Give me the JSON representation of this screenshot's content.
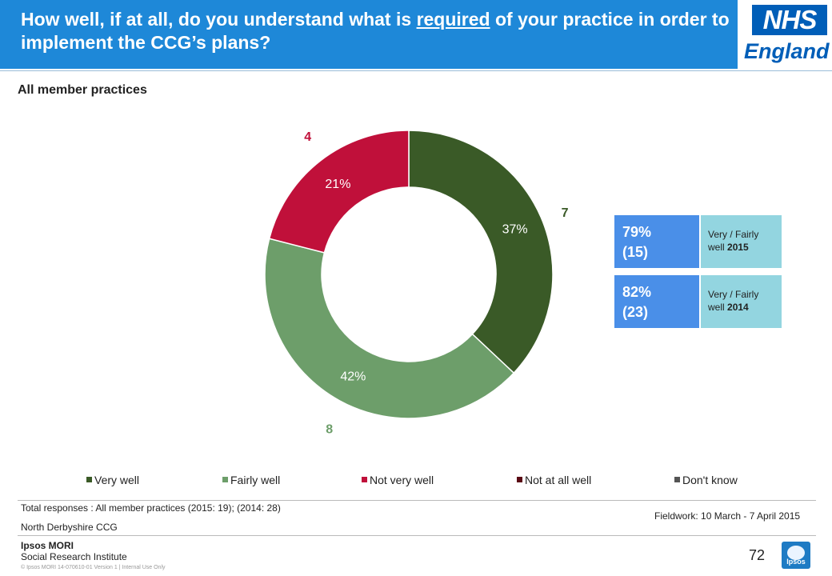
{
  "header": {
    "title_before": "How well, if at all, do you understand what is ",
    "title_underlined": "required",
    "title_after": " of your practice in order to implement the CCG’s plans?",
    "logo_nhs": "NHS",
    "logo_england": "England"
  },
  "subtitle": "All member practices",
  "chart_data": {
    "type": "pie",
    "style": "donut",
    "slices": [
      {
        "name": "Very well",
        "value": 37,
        "label": "37%",
        "count": "7",
        "color": "#3a5a27"
      },
      {
        "name": "Fairly well",
        "value": 42,
        "label": "42%",
        "count": "8",
        "color": "#6d9e6a"
      },
      {
        "name": "Not very well",
        "value": 21,
        "label": "21%",
        "count": "4",
        "color": "#c0103a"
      }
    ],
    "legend": [
      {
        "name": "Very well",
        "color": "#3a5a27"
      },
      {
        "name": "Fairly well",
        "color": "#6d9e6a"
      },
      {
        "name": "Not very well",
        "color": "#c0103a"
      },
      {
        "name": "Not at all well",
        "color": "#5a0a14"
      },
      {
        "name": "Don't know",
        "color": "#555555"
      }
    ],
    "legend_position": "bottom",
    "start_angle_deg": 0,
    "direction": "clockwise"
  },
  "summary_boxes": [
    {
      "percent": "79%",
      "count": "(15)",
      "label": "Very / Fairly well",
      "year": "2015"
    },
    {
      "percent": "82%",
      "count": "(23)",
      "label": "Very / Fairly well",
      "year": "2014"
    }
  ],
  "footer": {
    "total_responses": "Total responses : All member practices (2015: 19); (2014: 28)",
    "ccg": "North Derbyshire CCG",
    "fieldwork": "Fieldwork: 10 March - 7 April 2015",
    "brand_line1": "Ipsos MORI",
    "brand_line2": "Social Research Institute",
    "copyright": "© Ipsos MORI    14-070610-01  Version 1 | Internal Use Only",
    "page_number": "72",
    "ipsos_logo_text": "Ipsos"
  },
  "colors": {
    "header_bg": "#1e88d8",
    "box_left": "#4a8fe8",
    "box_right": "#93d5e0"
  }
}
